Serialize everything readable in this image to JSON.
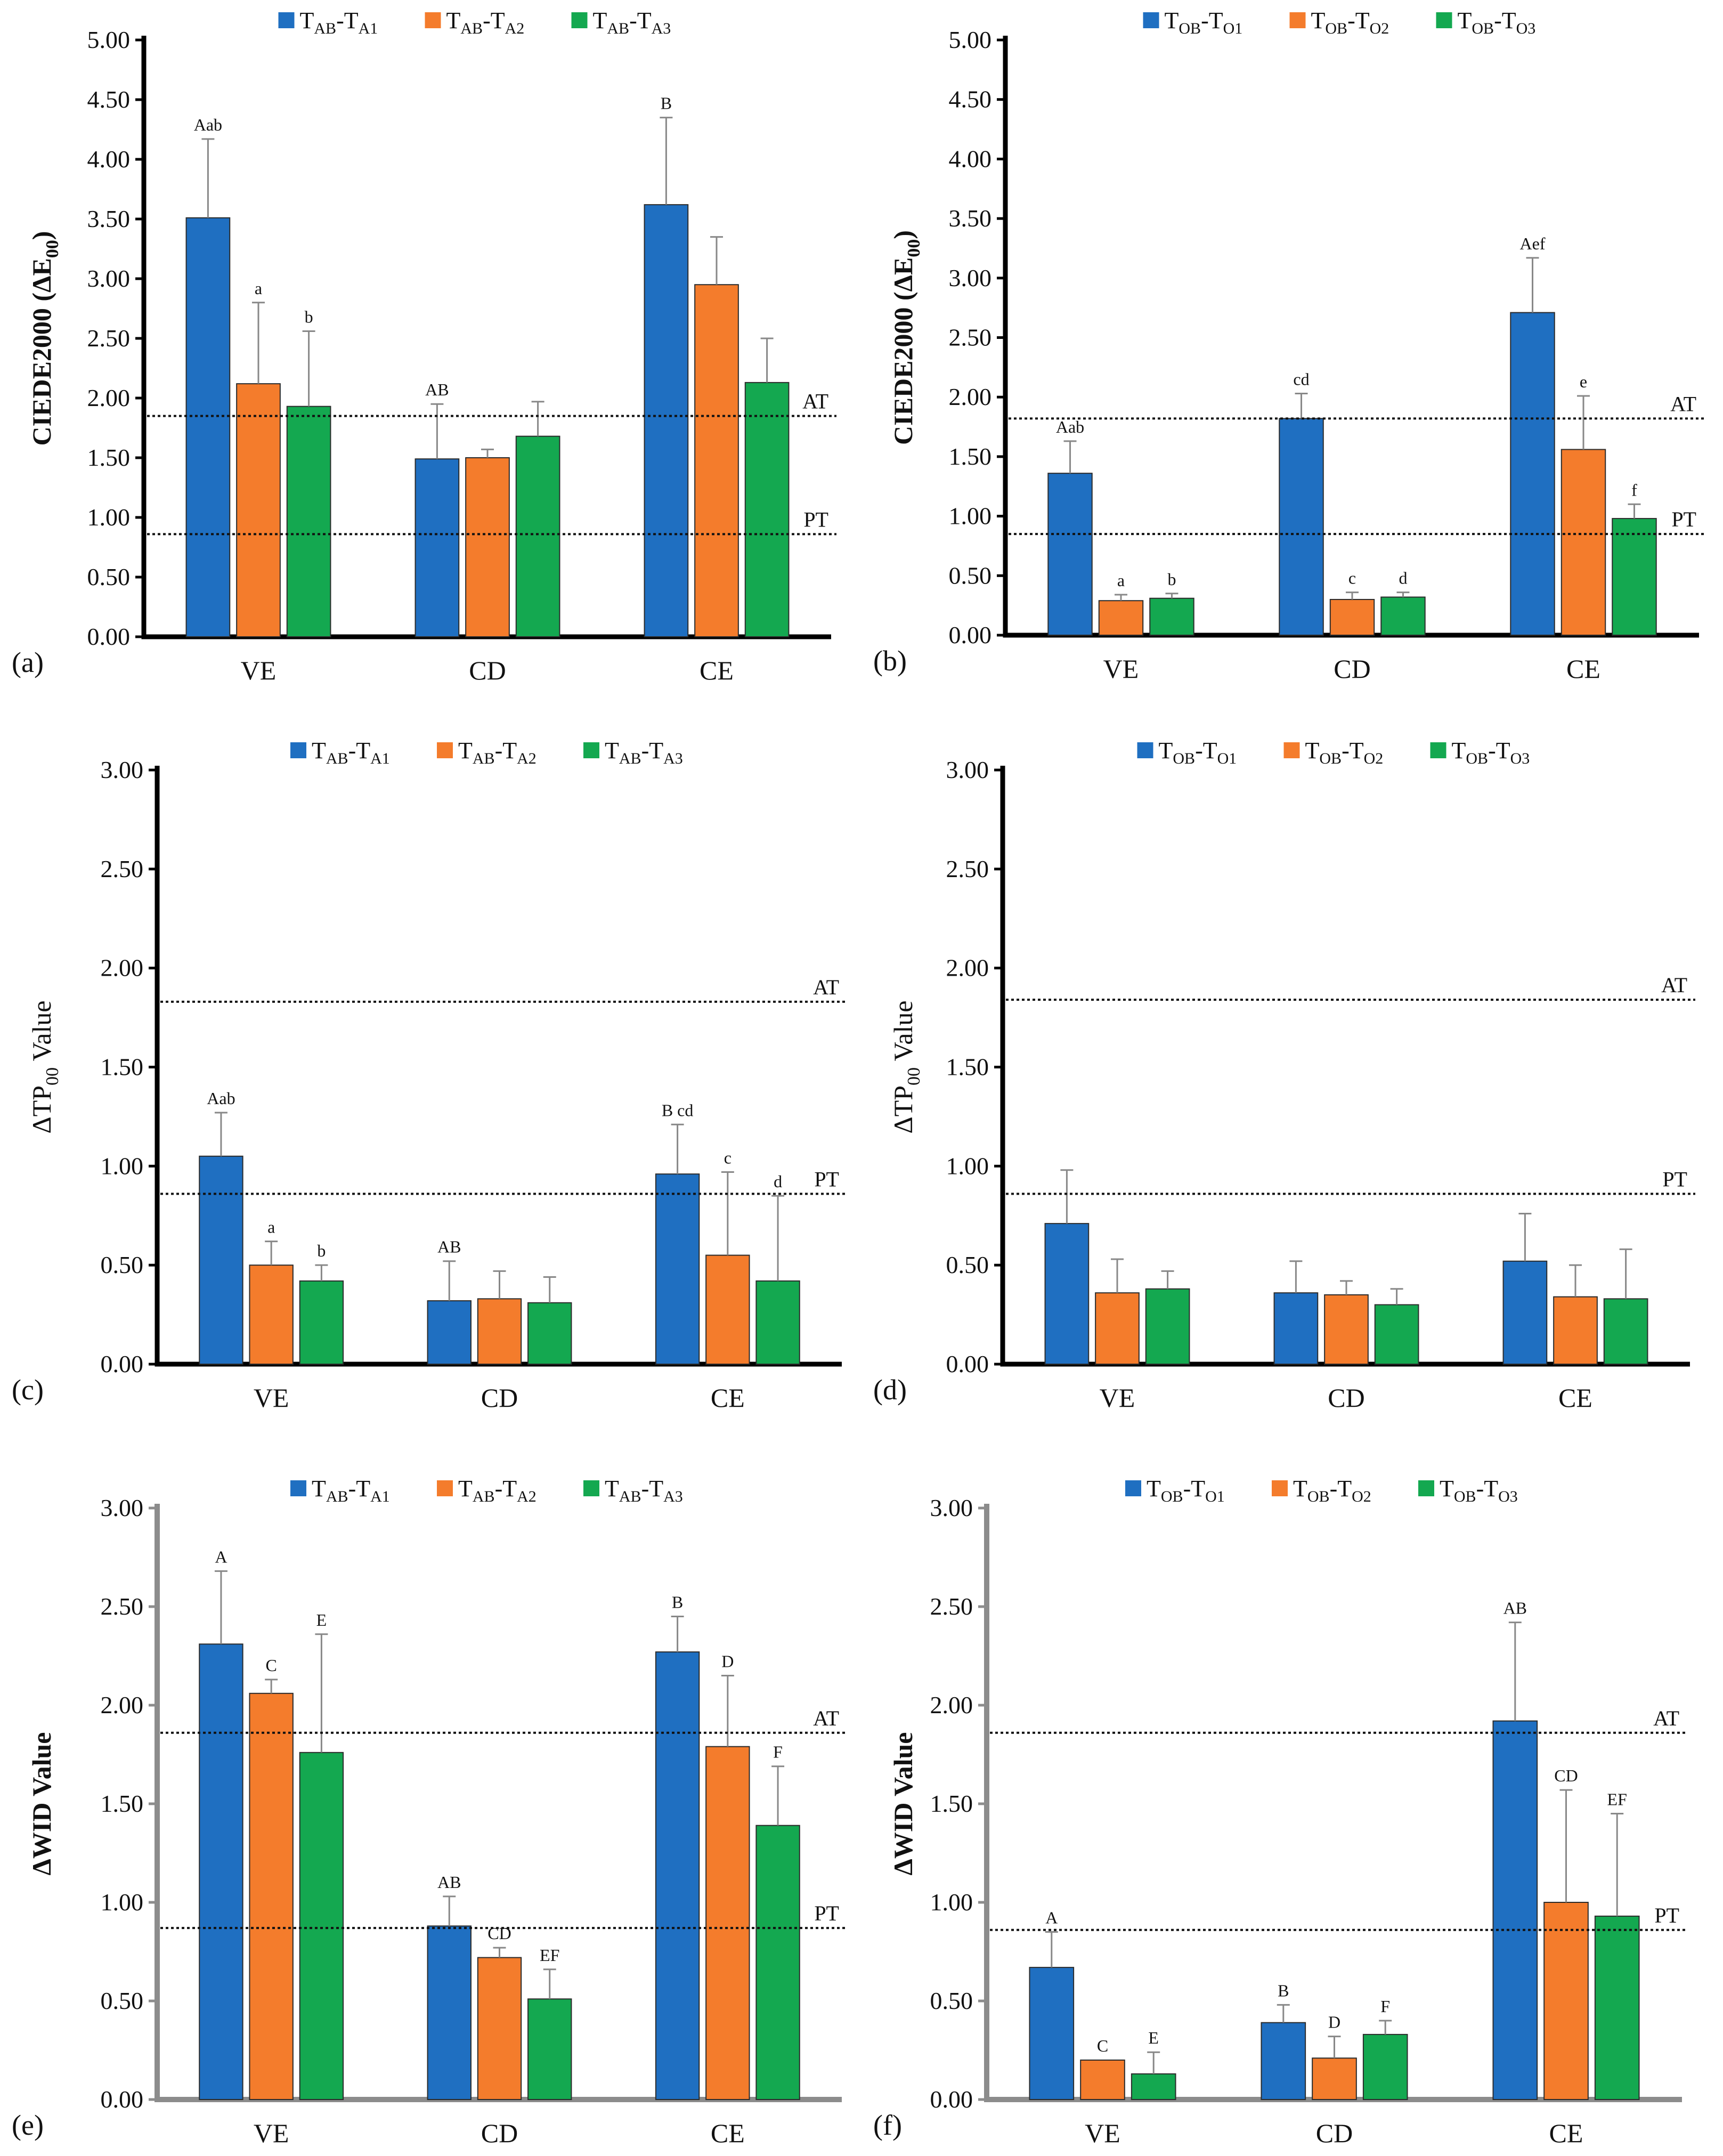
{
  "colors": {
    "series1": "#1f6fc1",
    "series2": "#f47c2c",
    "series3": "#14a850",
    "error_bar": "#888888",
    "axis_dark": "#000000",
    "axis_gray": "#8c8c8c"
  },
  "chart_data": [
    {
      "id": "a",
      "type": "bar",
      "panel_label": "(a)",
      "ylabel_main": "CIEDE2000 (ΔE",
      "ylabel_sub": "00",
      "ylabel_end": ")",
      "ylim": [
        0,
        5
      ],
      "yticks": [
        "0.00",
        "0.50",
        "1.00",
        "1.50",
        "2.00",
        "2.50",
        "3.00",
        "3.50",
        "4.00",
        "4.50",
        "5.00"
      ],
      "categories": [
        "VE",
        "CD",
        "CE"
      ],
      "legend": [
        {
          "main": "T",
          "sub1": "AB",
          "mid": "-T",
          "sub2": "A1"
        },
        {
          "main": "T",
          "sub1": "AB",
          "mid": "-T",
          "sub2": "A2"
        },
        {
          "main": "T",
          "sub1": "AB",
          "mid": "-T",
          "sub2": "A3"
        }
      ],
      "series": [
        {
          "name": "TAB-TA1",
          "values": [
            3.51,
            1.49,
            3.62
          ],
          "errors": [
            0.66,
            0.46,
            0.73
          ],
          "letters": [
            "Aab",
            "AB",
            "B"
          ]
        },
        {
          "name": "TAB-TA2",
          "values": [
            2.12,
            1.5,
            2.95
          ],
          "errors": [
            0.68,
            0.07,
            0.4
          ],
          "letters": [
            "a",
            "",
            ""
          ]
        },
        {
          "name": "TAB-TA3",
          "values": [
            1.93,
            1.68,
            2.13
          ],
          "errors": [
            0.63,
            0.29,
            0.37
          ],
          "letters": [
            "b",
            "",
            ""
          ]
        }
      ],
      "thresholds": [
        {
          "label": "AT",
          "value": 1.85
        },
        {
          "label": "PT",
          "value": 0.86
        }
      ]
    },
    {
      "id": "b",
      "type": "bar",
      "panel_label": "(b)",
      "ylabel_main": "CIEDE2000 (ΔE",
      "ylabel_sub": "00",
      "ylabel_end": ")",
      "ylim": [
        0,
        5
      ],
      "yticks": [
        "0.00",
        "0.50",
        "1.00",
        "1.50",
        "2.00",
        "2.50",
        "3.00",
        "3.50",
        "4.00",
        "4.50",
        "5.00"
      ],
      "categories": [
        "VE",
        "CD",
        "CE"
      ],
      "legend": [
        {
          "main": "T",
          "sub1": "OB",
          "mid": "-T",
          "sub2": "O1"
        },
        {
          "main": "T",
          "sub1": "OB",
          "mid": "-T",
          "sub2": "O2"
        },
        {
          "main": "T",
          "sub1": "OB",
          "mid": "-T",
          "sub2": "O3"
        }
      ],
      "series": [
        {
          "name": "TOB-TO1",
          "values": [
            1.36,
            1.82,
            2.71
          ],
          "errors": [
            0.27,
            0.21,
            0.46
          ],
          "letters": [
            "Aab",
            "cd",
            "Aef"
          ]
        },
        {
          "name": "TOB-TO2",
          "values": [
            0.29,
            0.3,
            1.56
          ],
          "errors": [
            0.05,
            0.06,
            0.45
          ],
          "letters": [
            "a",
            "c",
            "e"
          ]
        },
        {
          "name": "TOB-TO3",
          "values": [
            0.31,
            0.32,
            0.98
          ],
          "errors": [
            0.04,
            0.04,
            0.12
          ],
          "letters": [
            "b",
            "d",
            "f"
          ]
        }
      ],
      "thresholds": [
        {
          "label": "AT",
          "value": 1.82
        },
        {
          "label": "PT",
          "value": 0.85
        }
      ]
    },
    {
      "id": "c",
      "type": "bar",
      "panel_label": "(c)",
      "ylabel_main": "ΔTP",
      "ylabel_sub": "00",
      "ylabel_end": " Value",
      "ylim": [
        0,
        3
      ],
      "yticks": [
        "0.00",
        "0.50",
        "1.00",
        "1.50",
        "2.00",
        "2.50",
        "3.00"
      ],
      "categories": [
        "VE",
        "CD",
        "CE"
      ],
      "legend": [
        {
          "main": "T",
          "sub1": "AB",
          "mid": "-T",
          "sub2": "A1"
        },
        {
          "main": "T",
          "sub1": "AB",
          "mid": "-T",
          "sub2": "A2"
        },
        {
          "main": "T",
          "sub1": "AB",
          "mid": "-T",
          "sub2": "A3"
        }
      ],
      "series": [
        {
          "name": "TAB-TA1",
          "values": [
            1.05,
            0.32,
            0.96
          ],
          "errors": [
            0.22,
            0.2,
            0.25
          ],
          "letters": [
            "Aab",
            "AB",
            "B cd"
          ]
        },
        {
          "name": "TAB-TA2",
          "values": [
            0.5,
            0.33,
            0.55
          ],
          "errors": [
            0.12,
            0.14,
            0.42
          ],
          "letters": [
            "a",
            "",
            "c"
          ]
        },
        {
          "name": "TAB-TA3",
          "values": [
            0.42,
            0.31,
            0.42
          ],
          "errors": [
            0.08,
            0.13,
            0.43
          ],
          "letters": [
            "b",
            "",
            "d"
          ]
        }
      ],
      "thresholds": [
        {
          "label": "AT",
          "value": 1.83
        },
        {
          "label": "PT",
          "value": 0.86
        }
      ]
    },
    {
      "id": "d",
      "type": "bar",
      "panel_label": "(d)",
      "ylabel_main": "ΔTP",
      "ylabel_sub": "00",
      "ylabel_end": " Value",
      "ylim": [
        0,
        3
      ],
      "yticks": [
        "0.00",
        "0.50",
        "1.00",
        "1.50",
        "2.00",
        "2.50",
        "3.00"
      ],
      "categories": [
        "VE",
        "CD",
        "CE"
      ],
      "legend": [
        {
          "main": "T",
          "sub1": "OB",
          "mid": "-T",
          "sub2": "O1"
        },
        {
          "main": "T",
          "sub1": "OB",
          "mid": "-T",
          "sub2": "O2"
        },
        {
          "main": "T",
          "sub1": "OB",
          "mid": "-T",
          "sub2": "O3"
        }
      ],
      "series": [
        {
          "name": "TOB-TO1",
          "values": [
            0.71,
            0.36,
            0.52
          ],
          "errors": [
            0.27,
            0.16,
            0.24
          ],
          "letters": [
            "",
            "",
            ""
          ]
        },
        {
          "name": "TOB-TO2",
          "values": [
            0.36,
            0.35,
            0.34
          ],
          "errors": [
            0.17,
            0.07,
            0.16
          ],
          "letters": [
            "",
            "",
            ""
          ]
        },
        {
          "name": "TOB-TO3",
          "values": [
            0.38,
            0.3,
            0.33
          ],
          "errors": [
            0.09,
            0.08,
            0.25
          ],
          "letters": [
            "",
            "",
            ""
          ]
        }
      ],
      "thresholds": [
        {
          "label": "AT",
          "value": 1.84
        },
        {
          "label": "PT",
          "value": 0.86
        }
      ]
    },
    {
      "id": "e",
      "type": "bar",
      "panel_label": "(e)",
      "ylabel_main": "ΔWID Value",
      "ylabel_sub": "",
      "ylabel_end": "",
      "ylim": [
        0,
        3
      ],
      "yticks": [
        "0.00",
        "0.50",
        "1.00",
        "1.50",
        "2.00",
        "2.50",
        "3.00"
      ],
      "categories": [
        "VE",
        "CD",
        "CE"
      ],
      "legend": [
        {
          "main": "T",
          "sub1": "AB",
          "mid": "-T",
          "sub2": "A1"
        },
        {
          "main": "T",
          "sub1": "AB",
          "mid": "-T",
          "sub2": "A2"
        },
        {
          "main": "T",
          "sub1": "AB",
          "mid": "-T",
          "sub2": "A3"
        }
      ],
      "series": [
        {
          "name": "TAB-TA1",
          "values": [
            2.31,
            0.88,
            2.27
          ],
          "errors": [
            0.37,
            0.15,
            0.18
          ],
          "letters": [
            "A",
            "AB",
            "B"
          ]
        },
        {
          "name": "TAB-TA2",
          "values": [
            2.06,
            0.72,
            1.79
          ],
          "errors": [
            0.07,
            0.05,
            0.36
          ],
          "letters": [
            "C",
            "CD",
            "D"
          ]
        },
        {
          "name": "TAB-TA3",
          "values": [
            1.76,
            0.51,
            1.39
          ],
          "errors": [
            0.6,
            0.15,
            0.3
          ],
          "letters": [
            "E",
            "EF",
            "F"
          ]
        }
      ],
      "thresholds": [
        {
          "label": "AT",
          "value": 1.86
        },
        {
          "label": "PT",
          "value": 0.87
        }
      ]
    },
    {
      "id": "f",
      "type": "bar",
      "panel_label": "(f)",
      "ylabel_main": "ΔWID Value",
      "ylabel_sub": "",
      "ylabel_end": "",
      "ylim": [
        0,
        3
      ],
      "yticks": [
        "0.00",
        "0.50",
        "1.00",
        "1.50",
        "2.00",
        "2.50",
        "3.00"
      ],
      "categories": [
        "VE",
        "CD",
        "CE"
      ],
      "legend": [
        {
          "main": "T",
          "sub1": "OB",
          "mid": "-T",
          "sub2": "O1"
        },
        {
          "main": "T",
          "sub1": "OB",
          "mid": "-T",
          "sub2": "O2"
        },
        {
          "main": "T",
          "sub1": "OB",
          "mid": "-T",
          "sub2": "O3"
        }
      ],
      "series": [
        {
          "name": "TOB-TO1",
          "values": [
            0.67,
            0.39,
            1.92
          ],
          "errors": [
            0.18,
            0.09,
            0.5
          ],
          "letters": [
            "A",
            "B",
            "AB"
          ]
        },
        {
          "name": "TOB-TO2",
          "values": [
            0.2,
            0.21,
            1.0
          ],
          "errors": [
            0.0,
            0.11,
            0.57
          ],
          "letters": [
            "C",
            "D",
            "CD"
          ]
        },
        {
          "name": "TOB-TO3",
          "values": [
            0.13,
            0.33,
            0.93
          ],
          "errors": [
            0.11,
            0.07,
            0.52
          ],
          "letters": [
            "E",
            "F",
            "EF"
          ]
        }
      ],
      "thresholds": [
        {
          "label": "AT",
          "value": 1.86
        },
        {
          "label": "PT",
          "value": 0.86
        }
      ]
    }
  ]
}
